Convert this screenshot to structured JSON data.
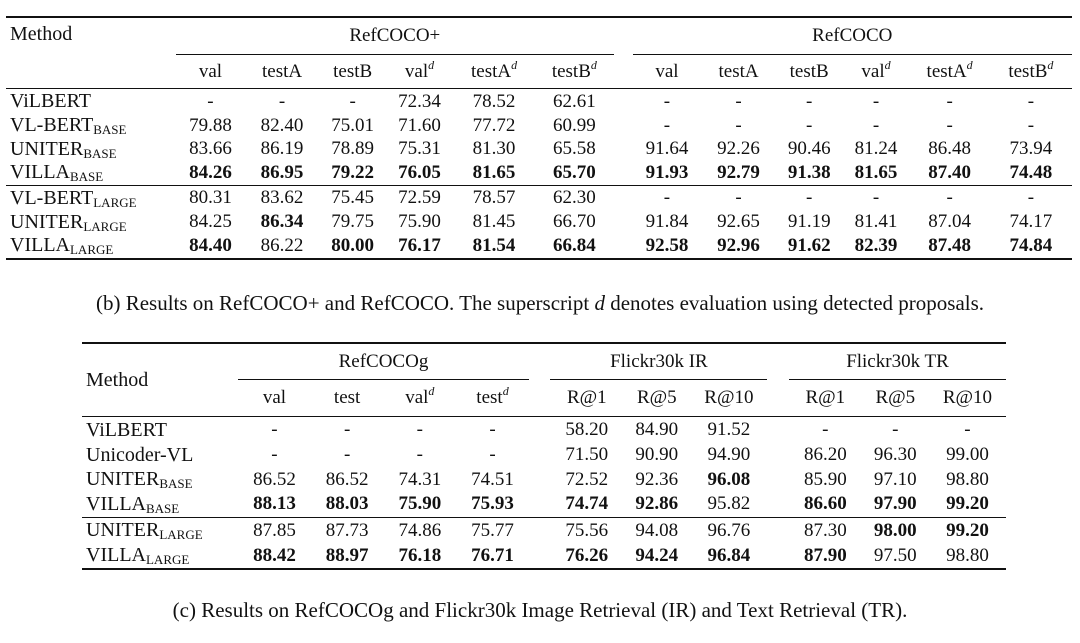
{
  "table_b": {
    "method_label": "Method",
    "group1": "RefCOCO+",
    "group2": "RefCOCO",
    "cols": [
      "val",
      "testA",
      "testB",
      "val",
      "testA",
      "testB"
    ],
    "sup": "d",
    "rows": [
      {
        "name": "ViLBERT",
        "sub": "",
        "vals": [
          "-",
          "-",
          "-",
          "72.34",
          "78.52",
          "62.61",
          "-",
          "-",
          "-",
          "-",
          "-",
          "-"
        ],
        "bold": []
      },
      {
        "name": "VL-BERT",
        "sub": "BASE",
        "vals": [
          "79.88",
          "82.40",
          "75.01",
          "71.60",
          "77.72",
          "60.99",
          "-",
          "-",
          "-",
          "-",
          "-",
          "-"
        ],
        "bold": []
      },
      {
        "name": "UNITER",
        "sub": "BASE",
        "vals": [
          "83.66",
          "86.19",
          "78.89",
          "75.31",
          "81.30",
          "65.58",
          "91.64",
          "92.26",
          "90.46",
          "81.24",
          "86.48",
          "73.94"
        ],
        "bold": []
      },
      {
        "name": "VILLA",
        "sub": "BASE",
        "vals": [
          "84.26",
          "86.95",
          "79.22",
          "76.05",
          "81.65",
          "65.70",
          "91.93",
          "92.79",
          "91.38",
          "81.65",
          "87.40",
          "74.48"
        ],
        "bold": [
          0,
          1,
          2,
          3,
          4,
          5,
          6,
          7,
          8,
          9,
          10,
          11
        ]
      },
      {
        "name": "VL-BERT",
        "sub": "LARGE",
        "vals": [
          "80.31",
          "83.62",
          "75.45",
          "72.59",
          "78.57",
          "62.30",
          "-",
          "-",
          "-",
          "-",
          "-",
          "-"
        ],
        "bold": []
      },
      {
        "name": "UNITER",
        "sub": "LARGE",
        "vals": [
          "84.25",
          "86.34",
          "79.75",
          "75.90",
          "81.45",
          "66.70",
          "91.84",
          "92.65",
          "91.19",
          "81.41",
          "87.04",
          "74.17"
        ],
        "bold": [
          1
        ]
      },
      {
        "name": "VILLA",
        "sub": "LARGE",
        "vals": [
          "84.40",
          "86.22",
          "80.00",
          "76.17",
          "81.54",
          "66.84",
          "92.58",
          "92.96",
          "91.62",
          "82.39",
          "87.48",
          "74.84"
        ],
        "bold": [
          0,
          2,
          3,
          4,
          5,
          6,
          7,
          8,
          9,
          10,
          11
        ]
      }
    ],
    "caption_prefix": "(b) Results on RefCOCO+ and RefCOCO. The superscript ",
    "caption_var": "d",
    "caption_suffix": " denotes evaluation using detected proposals."
  },
  "table_c": {
    "method_label": "Method",
    "group1": "RefCOCOg",
    "group2": "Flickr30k IR",
    "group3": "Flickr30k TR",
    "cols": [
      "val",
      "test",
      "val",
      "test",
      "R@1",
      "R@5",
      "R@10",
      "R@1",
      "R@5",
      "R@10"
    ],
    "sup": "d",
    "rows": [
      {
        "name": "ViLBERT",
        "sub": "",
        "vals": [
          "-",
          "-",
          "-",
          "-",
          "58.20",
          "84.90",
          "91.52",
          "-",
          "-",
          "-"
        ],
        "bold": []
      },
      {
        "name": "Unicoder-VL",
        "sub": "",
        "vals": [
          "-",
          "-",
          "-",
          "-",
          "71.50",
          "90.90",
          "94.90",
          "86.20",
          "96.30",
          "99.00"
        ],
        "bold": []
      },
      {
        "name": "UNITER",
        "sub": "BASE",
        "vals": [
          "86.52",
          "86.52",
          "74.31",
          "74.51",
          "72.52",
          "92.36",
          "96.08",
          "85.90",
          "97.10",
          "98.80"
        ],
        "bold": [
          6
        ]
      },
      {
        "name": "VILLA",
        "sub": "BASE",
        "vals": [
          "88.13",
          "88.03",
          "75.90",
          "75.93",
          "74.74",
          "92.86",
          "95.82",
          "86.60",
          "97.90",
          "99.20"
        ],
        "bold": [
          0,
          1,
          2,
          3,
          4,
          5,
          7,
          8,
          9
        ]
      },
      {
        "name": "UNITER",
        "sub": "LARGE",
        "vals": [
          "87.85",
          "87.73",
          "74.86",
          "75.77",
          "75.56",
          "94.08",
          "96.76",
          "87.30",
          "98.00",
          "99.20"
        ],
        "bold": [
          8,
          9
        ]
      },
      {
        "name": "VILLA",
        "sub": "LARGE",
        "vals": [
          "88.42",
          "88.97",
          "76.18",
          "76.71",
          "76.26",
          "94.24",
          "96.84",
          "87.90",
          "97.50",
          "98.80"
        ],
        "bold": [
          0,
          1,
          2,
          3,
          4,
          5,
          6,
          7
        ]
      }
    ],
    "caption": "(c) Results on RefCOCOg and Flickr30k Image Retrieval (IR) and Text Retrieval (TR)."
  }
}
